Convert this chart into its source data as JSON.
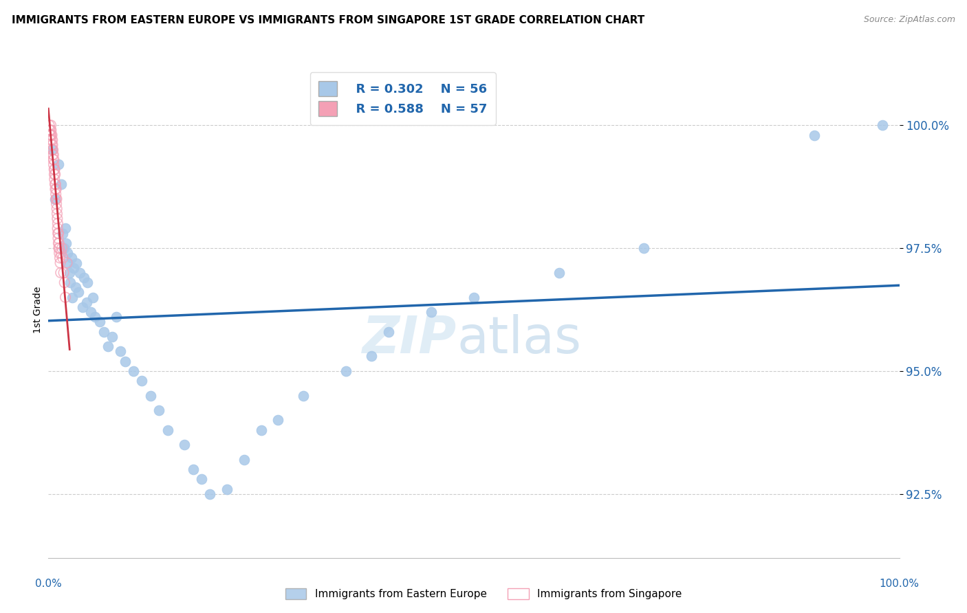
{
  "title": "IMMIGRANTS FROM EASTERN EUROPE VS IMMIGRANTS FROM SINGAPORE 1ST GRADE CORRELATION CHART",
  "source": "Source: ZipAtlas.com",
  "ylabel": "1st Grade",
  "legend_blue_r": "R = 0.302",
  "legend_blue_n": "N = 56",
  "legend_pink_r": "R = 0.588",
  "legend_pink_n": "N = 57",
  "blue_color": "#a8c8e8",
  "pink_color": "#f4a0b5",
  "blue_line_color": "#2166ac",
  "pink_line_color": "#cc3344",
  "watermark_zip": "ZIP",
  "watermark_atlas": "atlas",
  "blue_scatter_x": [
    0.5,
    0.8,
    1.2,
    1.5,
    1.7,
    1.8,
    2.0,
    2.1,
    2.2,
    2.3,
    2.5,
    2.6,
    2.7,
    2.8,
    3.0,
    3.2,
    3.3,
    3.5,
    3.7,
    4.0,
    4.2,
    4.5,
    4.6,
    5.0,
    5.2,
    5.5,
    6.0,
    6.5,
    7.0,
    7.5,
    8.0,
    8.5,
    9.0,
    10.0,
    11.0,
    12.0,
    13.0,
    14.0,
    16.0,
    17.0,
    18.0,
    19.0,
    21.0,
    23.0,
    25.0,
    27.0,
    30.0,
    35.0,
    38.0,
    40.0,
    45.0,
    50.0,
    60.0,
    70.0,
    90.0,
    98.0
  ],
  "blue_scatter_y": [
    99.5,
    98.5,
    99.2,
    98.8,
    97.8,
    97.5,
    97.9,
    97.6,
    97.4,
    97.2,
    97.0,
    96.8,
    97.3,
    96.5,
    97.1,
    96.7,
    97.2,
    96.6,
    97.0,
    96.3,
    96.9,
    96.4,
    96.8,
    96.2,
    96.5,
    96.1,
    96.0,
    95.8,
    95.5,
    95.7,
    96.1,
    95.4,
    95.2,
    95.0,
    94.8,
    94.5,
    94.2,
    93.8,
    93.5,
    93.0,
    92.8,
    92.5,
    92.6,
    93.2,
    93.8,
    94.0,
    94.5,
    95.0,
    95.3,
    95.8,
    96.2,
    96.5,
    97.0,
    97.5,
    99.8,
    100.0
  ],
  "pink_scatter_x": [
    0.1,
    0.15,
    0.2,
    0.22,
    0.25,
    0.28,
    0.3,
    0.32,
    0.35,
    0.38,
    0.4,
    0.42,
    0.45,
    0.48,
    0.5,
    0.52,
    0.55,
    0.58,
    0.6,
    0.62,
    0.65,
    0.68,
    0.7,
    0.72,
    0.75,
    0.78,
    0.8,
    0.82,
    0.85,
    0.88,
    0.9,
    0.92,
    0.95,
    0.98,
    1.0,
    1.02,
    1.05,
    1.08,
    1.1,
    1.12,
    1.15,
    1.18,
    1.2,
    1.22,
    1.25,
    1.28,
    1.3,
    1.35,
    1.4,
    1.45,
    1.5,
    1.6,
    1.7,
    1.8,
    1.9,
    2.0,
    2.2
  ],
  "pink_scatter_y": [
    100.0,
    99.9,
    99.8,
    99.7,
    99.8,
    99.9,
    100.0,
    99.9,
    99.8,
    99.7,
    99.6,
    99.8,
    99.5,
    99.7,
    99.6,
    99.4,
    99.5,
    99.3,
    99.4,
    99.2,
    99.3,
    99.1,
    99.0,
    98.9,
    99.1,
    98.8,
    99.0,
    98.7,
    98.8,
    98.6,
    98.5,
    98.7,
    98.4,
    98.5,
    98.3,
    98.2,
    98.1,
    97.9,
    98.0,
    97.8,
    97.7,
    97.6,
    97.8,
    97.5,
    97.6,
    97.4,
    97.5,
    97.3,
    97.2,
    97.0,
    97.4,
    97.5,
    97.3,
    97.0,
    96.8,
    96.5,
    97.2
  ],
  "xmin": 0.0,
  "xmax": 100.0,
  "ymin": 91.2,
  "ymax": 101.3,
  "grid_yticks": [
    92.5,
    95.0,
    97.5,
    100.0
  ],
  "ytick_positions": [
    92.5,
    95.0,
    97.5,
    100.0
  ],
  "ytick_labels": [
    "92.5%",
    "95.0%",
    "97.5%",
    "100.0%"
  ]
}
